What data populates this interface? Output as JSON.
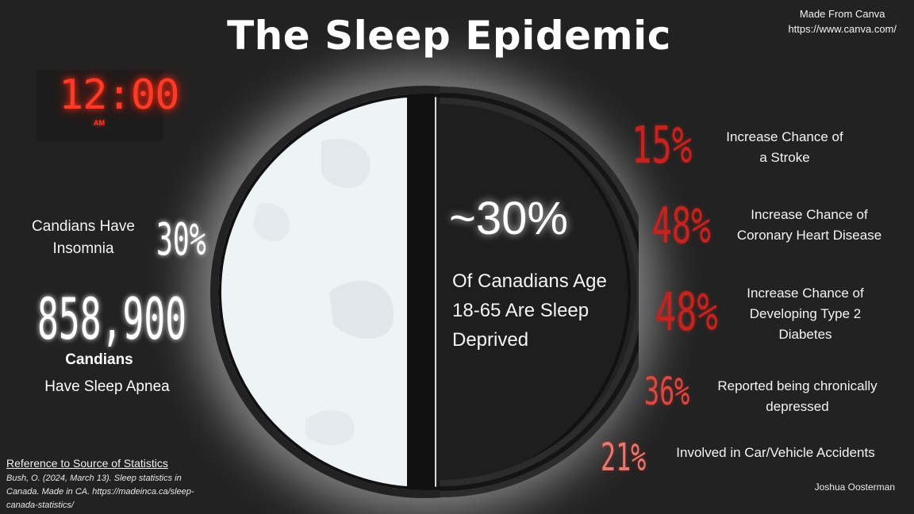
{
  "title": "The Sleep Epidemic",
  "credit": {
    "line1": "Made From Canva",
    "line2": "https://www.canva.com/"
  },
  "clock": {
    "time": "12:00",
    "ampm": "AM"
  },
  "left": {
    "insomnia_label_1": "Candians Have",
    "insomnia_label_2": "Insomnia",
    "insomnia_value": "30%",
    "apnea_value": "858,900",
    "apnea_label_1": "Candians",
    "apnea_label_2": "Have Sleep Apnea"
  },
  "center": {
    "headline": "~30%",
    "line1": "Of Canadians Age",
    "line2": "18-65 Are Sleep",
    "line3": "Deprived"
  },
  "right": [
    {
      "value": "15%",
      "label_1": "Increase Chance of",
      "label_2": "a Stroke",
      "label_3": ""
    },
    {
      "value": "48%",
      "label_1": "Increase Chance of",
      "label_2": "Coronary Heart Disease",
      "label_3": ""
    },
    {
      "value": "48%",
      "label_1": "Increase Chance of",
      "label_2": "Developing Type 2",
      "label_3": "Diabetes"
    },
    {
      "value": "36%",
      "label_1": "Reported being chronically",
      "label_2": "depressed",
      "label_3": ""
    },
    {
      "value": "21%",
      "label_1": "Involved in Car/Vehicle Accidents",
      "label_2": "",
      "label_3": ""
    }
  ],
  "reference": {
    "title": "Reference to Source of Statistics",
    "line1": "Bush, O. (2024, March 13). Sleep statistics in",
    "line2": "Canada. Made in CA. https://madeinca.ca/sleep-",
    "line3": "canada-statistics/"
  },
  "author": "Joshua Oosterman",
  "colors": {
    "background": "#222222",
    "accent_red": "#c42420",
    "clock_red": "#ff3a26",
    "moon_light": "#eef3f5",
    "moon_dark": "#1e1e1e"
  }
}
